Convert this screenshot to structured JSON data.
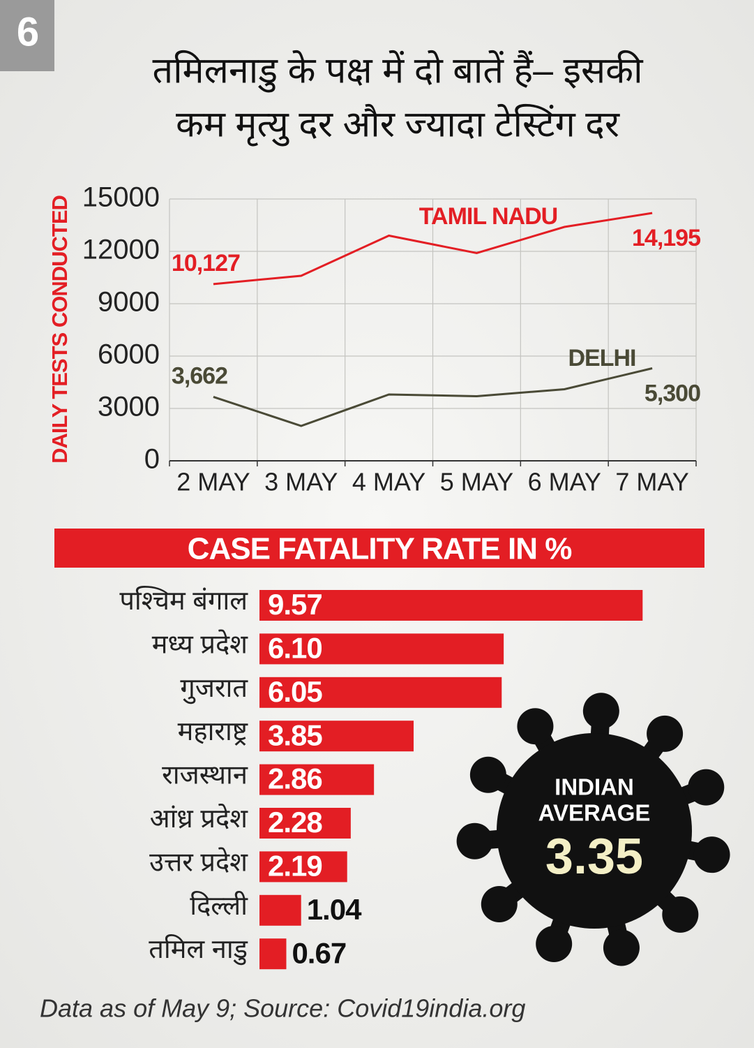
{
  "badge": "6",
  "headline": [
    "तमिलनाडु के पक्ष में दो बातें हैं– इसकी",
    "कम मृत्यु दर और ज्यादा टेस्टिंग दर"
  ],
  "source": "Data as of May 9; Source: Covid19india.org",
  "chart_data": [
    {
      "type": "line",
      "ylabel": "DAILY TESTS CONDUCTED",
      "categories": [
        "2 MAY",
        "3 MAY",
        "4 MAY",
        "5 MAY",
        "6 MAY",
        "7 MAY"
      ],
      "series": [
        {
          "name": "TAMIL NADU",
          "color": "#e31e24",
          "values": [
            10127,
            10600,
            12900,
            11900,
            13400,
            14195
          ],
          "value_labels": [
            "10,127",
            null,
            null,
            null,
            null,
            "14,195"
          ]
        },
        {
          "name": "DELHI",
          "color": "#4a4a36",
          "values": [
            3662,
            2000,
            3800,
            3700,
            4100,
            5300
          ],
          "value_labels": [
            "3,662",
            null,
            null,
            null,
            null,
            "5,300"
          ]
        }
      ],
      "ylim": [
        0,
        15000
      ],
      "yticks": [
        0,
        3000,
        6000,
        9000,
        12000,
        15000
      ],
      "grid": true
    },
    {
      "type": "bar",
      "orientation": "horizontal",
      "title": "CASE FATALITY RATE IN %",
      "color": "#e31e24",
      "categories": [
        "पश्चिम बंगाल",
        "मध्य प्रदेश",
        "गुजरात",
        "महाराष्ट्र",
        "राजस्थान",
        "आंध्र प्रदेश",
        "उत्तर प्रदेश",
        "दिल्ली",
        "तमिल नाडु"
      ],
      "values": [
        9.57,
        6.1,
        6.05,
        3.85,
        2.86,
        2.28,
        2.19,
        1.04,
        0.67
      ],
      "value_labels": [
        "9.57",
        "6.10",
        "6.05",
        "3.85",
        "2.86",
        "2.28",
        "2.19",
        "1.04",
        "0.67"
      ],
      "callout": {
        "label": [
          "INDIAN",
          "AVERAGE"
        ],
        "value": 3.35
      }
    }
  ]
}
